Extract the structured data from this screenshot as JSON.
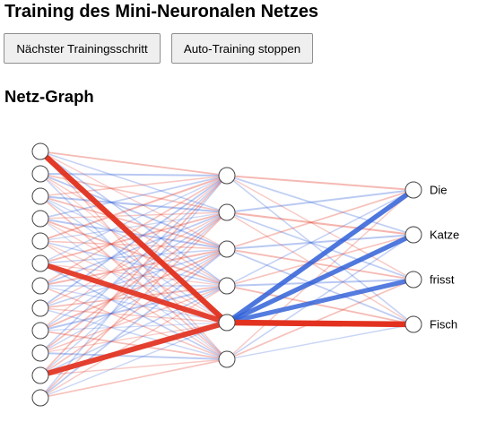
{
  "page_title": "Training des Mini-Neuronalen Netzes",
  "buttons": {
    "next_step": "Nächster Trainingsschritt",
    "stop_auto": "Auto-Training stoppen"
  },
  "graph_heading": "Netz-Graph",
  "network": {
    "layers": {
      "input": 12,
      "hidden": 6,
      "output": 4
    },
    "output_labels": [
      "Die",
      "Katze",
      "frisst",
      "Fisch"
    ],
    "colors": {
      "positive": "#e2321f",
      "negative": "#2f5fd8"
    },
    "edges_input_hidden": [
      [
        0.18,
        -0.12,
        0.08,
        -0.15,
        0.95,
        0.1
      ],
      [
        -0.2,
        0.14,
        -0.18,
        0.1,
        0.05,
        -0.12
      ],
      [
        0.12,
        -0.22,
        0.16,
        -0.08,
        -0.1,
        0.14
      ],
      [
        -0.15,
        0.1,
        -0.2,
        0.18,
        0.08,
        -0.06
      ],
      [
        0.2,
        -0.08,
        0.12,
        -0.14,
        0.06,
        0.1
      ],
      [
        -0.1,
        0.18,
        -0.12,
        0.08,
        0.9,
        -0.15
      ],
      [
        0.14,
        -0.16,
        0.2,
        -0.1,
        -0.08,
        0.12
      ],
      [
        -0.18,
        0.1,
        -0.14,
        0.16,
        0.1,
        -0.1
      ],
      [
        0.1,
        -0.12,
        0.18,
        -0.2,
        -0.06,
        0.16
      ],
      [
        -0.14,
        0.16,
        -0.1,
        0.12,
        0.08,
        -0.18
      ],
      [
        0.16,
        -0.1,
        0.14,
        -0.12,
        0.92,
        0.1
      ],
      [
        -0.12,
        0.14,
        -0.16,
        0.1,
        -0.1,
        0.14
      ]
    ],
    "edges_hidden_output": [
      [
        0.2,
        -0.15,
        0.1,
        -0.12
      ],
      [
        -0.18,
        0.22,
        -0.15,
        0.1
      ],
      [
        0.15,
        -0.2,
        0.18,
        -0.16
      ],
      [
        -0.12,
        0.14,
        -0.2,
        0.18
      ],
      [
        -0.82,
        -0.8,
        -0.78,
        1.0
      ],
      [
        0.1,
        -0.12,
        0.15,
        -0.1
      ]
    ]
  }
}
